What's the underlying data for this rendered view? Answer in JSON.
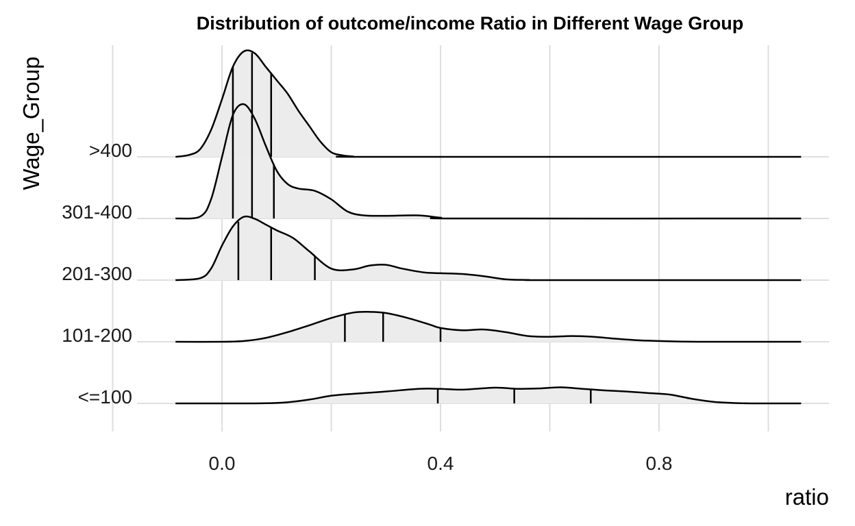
{
  "chart_data": {
    "type": "ridgeline",
    "title": "Distribution of outcome/income Ratio in Different Wage Group",
    "xlabel": "ratio",
    "ylabel": "Wage_Group",
    "xlim": [
      -0.085,
      1.06
    ],
    "x_ticks": [
      {
        "value": 0.0,
        "label": "0.0"
      },
      {
        "value": 0.4,
        "label": "0.4"
      },
      {
        "value": 0.8,
        "label": "0.8"
      }
    ],
    "grid": true,
    "categories": [
      "<=100",
      "101-200",
      "201-300",
      "301-400",
      ">400"
    ],
    "series": [
      {
        "name": "<=100",
        "quantiles": [
          0.395,
          0.535,
          0.675
        ],
        "density_x": [
          -0.085,
          0.0,
          0.08,
          0.12,
          0.16,
          0.2,
          0.24,
          0.3,
          0.36,
          0.4,
          0.44,
          0.5,
          0.54,
          0.58,
          0.62,
          0.66,
          0.7,
          0.74,
          0.78,
          0.82,
          0.86,
          0.9,
          0.94,
          0.98,
          1.06
        ],
        "density_y": [
          0.0,
          0.0,
          0.004,
          0.03,
          0.1,
          0.2,
          0.25,
          0.31,
          0.38,
          0.38,
          0.36,
          0.41,
          0.38,
          0.39,
          0.42,
          0.38,
          0.34,
          0.31,
          0.27,
          0.23,
          0.12,
          0.04,
          0.01,
          0.0,
          0.0
        ]
      },
      {
        "name": "101-200",
        "quantiles": [
          0.225,
          0.295,
          0.4
        ],
        "density_x": [
          -0.085,
          0.0,
          0.04,
          0.08,
          0.12,
          0.16,
          0.2,
          0.24,
          0.27,
          0.3,
          0.34,
          0.38,
          0.4,
          0.44,
          0.48,
          0.52,
          0.56,
          0.6,
          0.64,
          0.68,
          0.72,
          0.76,
          0.8,
          0.84,
          0.88,
          0.92,
          1.06
        ],
        "density_y": [
          0.0,
          0.0,
          0.02,
          0.1,
          0.25,
          0.43,
          0.62,
          0.76,
          0.78,
          0.75,
          0.62,
          0.45,
          0.36,
          0.3,
          0.32,
          0.25,
          0.15,
          0.13,
          0.15,
          0.13,
          0.08,
          0.04,
          0.02,
          0.005,
          0.0,
          0.0,
          0.0
        ]
      },
      {
        "name": "201-300",
        "quantiles": [
          0.03,
          0.09,
          0.17
        ],
        "density_x": [
          -0.085,
          -0.04,
          -0.02,
          0.0,
          0.02,
          0.04,
          0.06,
          0.08,
          0.1,
          0.13,
          0.16,
          0.2,
          0.24,
          0.27,
          0.3,
          0.33,
          0.37,
          0.4,
          0.44,
          0.48,
          0.52,
          0.56,
          0.6,
          1.06
        ],
        "density_y": [
          0.0,
          0.05,
          0.3,
          0.9,
          1.4,
          1.65,
          1.6,
          1.45,
          1.3,
          1.1,
          0.75,
          0.3,
          0.28,
          0.38,
          0.4,
          0.3,
          0.2,
          0.18,
          0.16,
          0.1,
          0.02,
          0.005,
          0.0,
          0.0
        ]
      },
      {
        "name": "301-400",
        "quantiles": [
          0.02,
          0.055,
          0.095
        ],
        "density_x": [
          -0.085,
          -0.04,
          -0.02,
          0.0,
          0.02,
          0.04,
          0.06,
          0.08,
          0.1,
          0.12,
          0.14,
          0.17,
          0.2,
          0.23,
          0.26,
          0.3,
          0.36,
          0.4,
          0.44,
          1.06
        ],
        "density_y": [
          0.0,
          0.05,
          0.5,
          1.6,
          2.7,
          2.98,
          2.6,
          1.9,
          1.25,
          0.9,
          0.78,
          0.72,
          0.5,
          0.18,
          0.08,
          0.07,
          0.08,
          0.02,
          0.0,
          0.0
        ]
      },
      {
        "name": ">400",
        "quantiles": [
          0.02,
          0.055,
          0.09
        ],
        "density_x": [
          -0.085,
          -0.06,
          -0.04,
          -0.02,
          0.0,
          0.02,
          0.04,
          0.06,
          0.08,
          0.1,
          0.12,
          0.14,
          0.16,
          0.18,
          0.2,
          0.22,
          0.24,
          0.28,
          1.06
        ],
        "density_y": [
          0.0,
          0.05,
          0.2,
          0.7,
          1.5,
          2.35,
          2.75,
          2.7,
          2.35,
          2.0,
          1.65,
          1.2,
          0.8,
          0.4,
          0.12,
          0.04,
          0.01,
          0.0,
          0.0
        ]
      }
    ]
  }
}
